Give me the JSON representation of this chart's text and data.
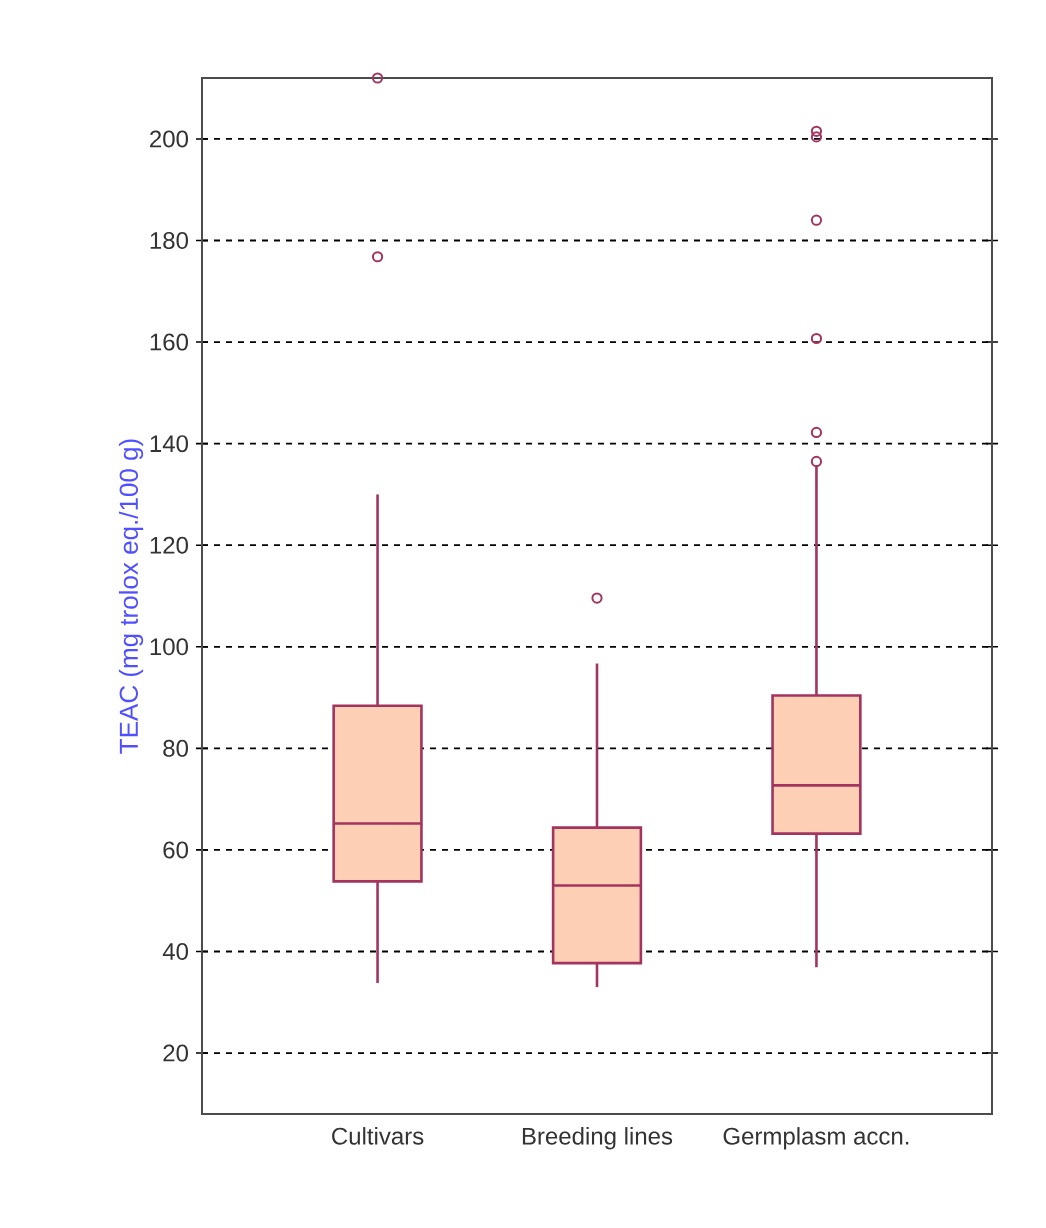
{
  "chart_data": {
    "type": "box",
    "categories": [
      "Cultivars",
      "Breeding lines",
      "Germplasm accn."
    ],
    "ylabel": "TEAC (mg trolox eq./100 g)",
    "color": "#a3345f",
    "boxes": [
      {
        "low": 33.8,
        "q1": 53.8,
        "median": 65.2,
        "q3": 88.4,
        "high": 130,
        "outliers": [
          212,
          176.8
        ]
      },
      {
        "low": 33,
        "q1": 37.7,
        "median": 53,
        "q3": 64.4,
        "high": 96.7,
        "outliers": [
          109.6
        ]
      },
      {
        "low": 36.9,
        "q1": 63.2,
        "median": 72.7,
        "q3": 90.4,
        "high": 135.5,
        "outliers": [
          201.5,
          200.4,
          184,
          160.7,
          142.2,
          136.5
        ]
      }
    ],
    "ylim": [
      8,
      212
    ],
    "yticks": [
      20,
      40,
      60,
      80,
      100,
      120,
      140,
      160,
      180,
      200
    ],
    "grid": "y"
  }
}
